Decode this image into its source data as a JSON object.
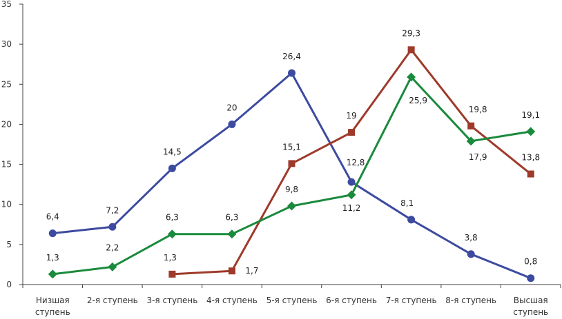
{
  "chart_data": {
    "type": "line",
    "categories": [
      [
        "Низшая",
        "ступень"
      ],
      [
        "2-я ступень"
      ],
      [
        "3-я ступень"
      ],
      [
        "4-я ступень"
      ],
      [
        "5-я ступень"
      ],
      [
        "6-я ступень"
      ],
      [
        "7-я ступень"
      ],
      [
        "8-я ступень"
      ],
      [
        "Высшая",
        "ступень"
      ]
    ],
    "ylim": [
      0,
      35
    ],
    "yticks": [
      0,
      5,
      10,
      15,
      20,
      25,
      30,
      35
    ],
    "grid": false,
    "series": [
      {
        "color": "#3c4ba0",
        "marker": "circle",
        "values": [
          6.4,
          7.2,
          14.5,
          20,
          26.4,
          12.8,
          8.1,
          3.8,
          0.8
        ],
        "labels": [
          "6,4",
          "7,2",
          "14,5",
          "20",
          "26,4",
          "12,8",
          "8,1",
          "3,8",
          "0,8"
        ]
      },
      {
        "color": "#9e3a2a",
        "marker": "square",
        "values": [
          null,
          null,
          1.3,
          1.7,
          15.1,
          19,
          29.3,
          19.8,
          13.8
        ],
        "labels": [
          null,
          null,
          "1,3",
          "1,7",
          "15,1",
          "19",
          "29,3",
          "19,8",
          "13,8"
        ]
      },
      {
        "color": "#1a8a3c",
        "marker": "diamond",
        "values": [
          1.3,
          2.2,
          6.3,
          6.3,
          9.8,
          11.2,
          25.9,
          17.9,
          19.1
        ],
        "labels": [
          "1,3",
          "2,2",
          "6,3",
          "6,3",
          "9,8",
          "11,2",
          "25,9",
          "17,9",
          "19,1"
        ]
      }
    ]
  }
}
